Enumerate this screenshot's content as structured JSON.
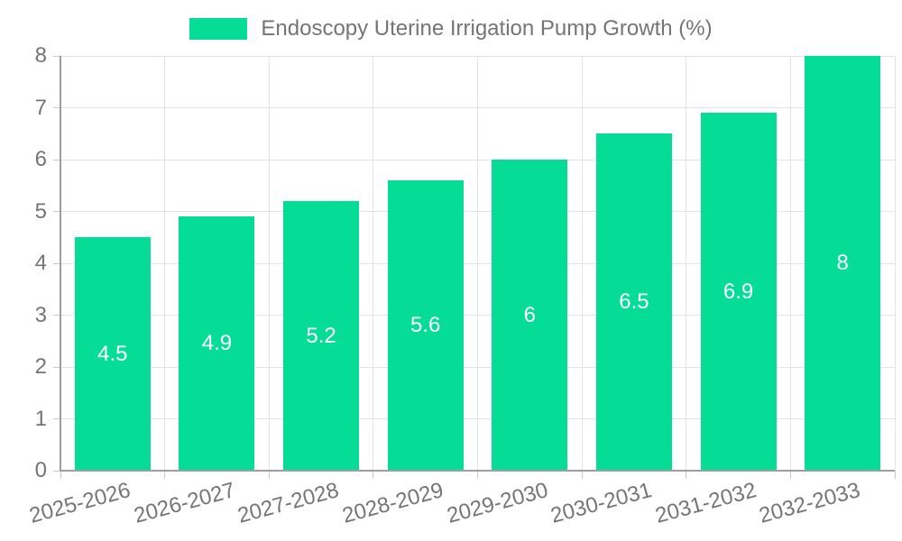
{
  "chart_data": {
    "type": "bar",
    "title": "",
    "legend": {
      "label": "Endoscopy Uterine Irrigation Pump Growth (%)",
      "position": "top"
    },
    "categories": [
      "2025-2026",
      "2026-2027",
      "2027-2028",
      "2028-2029",
      "2029-2030",
      "2030-2031",
      "2031-2032",
      "2032-2033"
    ],
    "values": [
      4.5,
      4.9,
      5.2,
      5.6,
      6,
      6.5,
      6.9,
      8
    ],
    "value_labels": [
      "4.5",
      "4.9",
      "5.2",
      "5.6",
      "6",
      "6.5",
      "6.9",
      "8"
    ],
    "xlabel": "",
    "ylabel": "",
    "ylim": [
      0,
      8
    ],
    "yticks": [
      0,
      1,
      2,
      3,
      4,
      5,
      6,
      7,
      8
    ],
    "grid": true,
    "colors": {
      "bar": "#05dc96",
      "grid": "#e3e3e3",
      "axis": "#9e9e9e",
      "tick": "#c9c9c9",
      "label": "#757575",
      "value_label": "#ffffff",
      "background": "#ffffff"
    }
  }
}
